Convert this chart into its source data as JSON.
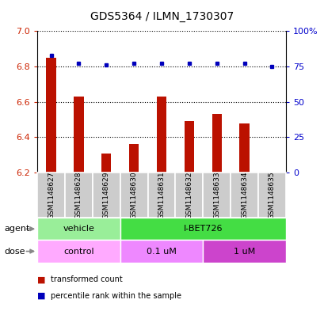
{
  "title": "GDS5364 / ILMN_1730307",
  "samples": [
    "GSM1148627",
    "GSM1148628",
    "GSM1148629",
    "GSM1148630",
    "GSM1148631",
    "GSM1148632",
    "GSM1148633",
    "GSM1148634",
    "GSM1148635"
  ],
  "bar_values": [
    6.85,
    6.63,
    6.31,
    6.36,
    6.63,
    6.49,
    6.53,
    6.48,
    6.2
  ],
  "percentile_values": [
    83,
    77,
    76,
    77,
    77,
    77,
    77,
    77,
    75
  ],
  "ylim_left": [
    6.2,
    7.0
  ],
  "ylim_right": [
    0,
    100
  ],
  "yticks_left": [
    6.2,
    6.4,
    6.6,
    6.8,
    7.0
  ],
  "yticks_right": [
    0,
    25,
    50,
    75,
    100
  ],
  "ytick_labels_right": [
    "0",
    "25",
    "50",
    "75",
    "100%"
  ],
  "bar_color": "#bb1100",
  "dot_color": "#0000bb",
  "bar_width": 0.35,
  "agent_groups": [
    {
      "text": "vehicle",
      "start": 0,
      "end": 2,
      "color": "#99ee99"
    },
    {
      "text": "I-BET726",
      "start": 3,
      "end": 8,
      "color": "#44dd44"
    }
  ],
  "dose_groups": [
    {
      "text": "control",
      "start": 0,
      "end": 2,
      "color": "#ffaaff"
    },
    {
      "text": "0.1 uM",
      "start": 3,
      "end": 5,
      "color": "#ee88ff"
    },
    {
      "text": "1 uM",
      "start": 6,
      "end": 8,
      "color": "#cc44cc"
    }
  ],
  "legend_bar_label": "transformed count",
  "legend_dot_label": "percentile rank within the sample",
  "tick_color_left": "#cc2200",
  "tick_color_right": "#0000cc",
  "bg_color": "#ffffff",
  "grid_color": "#000000",
  "sample_box_color": "#cccccc",
  "arrow_color": "#888888"
}
